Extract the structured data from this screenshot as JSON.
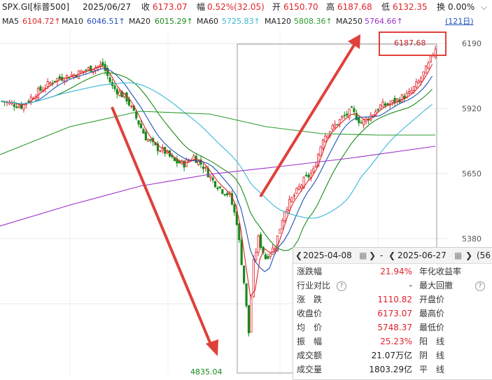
{
  "header": {
    "code": "SPX.GI[标普500]",
    "date": "2025/06/27",
    "close_label": "收",
    "close": "6173.07",
    "chg_label": "幅",
    "chg": "0.52%(32.05)",
    "open_label": "开",
    "open": "6150.70",
    "high_label": "高",
    "high": "6187.68",
    "low_label": "低",
    "low": "6132.35",
    "turnover_label": "换",
    "turnover": "0.00%"
  },
  "ma_bar": {
    "ma5_label": "MA5",
    "ma5": "6104.72↑",
    "ma10_label": "MA10",
    "ma10": "6046.51↑",
    "ma20_label": "MA20",
    "ma20": "6015.29↑",
    "ma60_label": "MA60",
    "ma60": "5725.83↑",
    "ma120_label": "MA120",
    "ma120": "5808.36↑",
    "ma250_label": "MA250",
    "ma250": "5764.66↑",
    "period": "(121日)",
    "colors": {
      "ma5": "#e0232b",
      "ma10": "#1f4fb5",
      "ma20": "#1a8a1a",
      "ma60": "#39b7d8",
      "ma120": "#2d9a2d",
      "ma250": "#9b2fc8"
    }
  },
  "y_axis": [
    "6190",
    "5920",
    "5650",
    "5380"
  ],
  "annotations": {
    "period_high": "6187.68",
    "period_low": "4835.04"
  },
  "stats_popup": {
    "start_date": "2025-04-08",
    "end_date": "2025-06-27",
    "sep": "-",
    "extra": "(56",
    "rows": [
      {
        "k1": "涨跌幅",
        "v1": "21.94%",
        "c1": "red",
        "k2": "年化收益率"
      },
      {
        "k1": "行业对比",
        "v1": "-",
        "c1": "dark",
        "k2": "最大回撤"
      },
      {
        "k1": "涨　跌",
        "v1": "1110.82",
        "c1": "red",
        "k2": "开盘价"
      },
      {
        "k1": "收盘价",
        "v1": "6173.07",
        "c1": "red",
        "k2": "最高价"
      },
      {
        "k1": "均　价",
        "v1": "5748.37",
        "c1": "red",
        "k2": "最低价"
      },
      {
        "k1": "振　幅",
        "v1": "25.23%",
        "c1": "red",
        "k2": "阳　线"
      },
      {
        "k1": "成交额",
        "v1": "21.07万亿",
        "c1": "dark",
        "k2": "阴　线"
      },
      {
        "k1": "成交量",
        "v1": "1803.29亿",
        "c1": "dark",
        "k2": "平　线"
      }
    ]
  },
  "chart_data": {
    "type": "candlestick",
    "y_axis_ticks": [
      6190,
      5920,
      5650,
      5380
    ],
    "period_high": 6187.68,
    "period_low": 4835.04,
    "series": [
      {
        "name": "MA5",
        "color": "#e0232b"
      },
      {
        "name": "MA10",
        "color": "#1f4fb5"
      },
      {
        "name": "MA20",
        "color": "#1a8a1a"
      },
      {
        "name": "MA60",
        "color": "#39b7d8"
      },
      {
        "name": "MA120",
        "color": "#2d9a2d"
      },
      {
        "name": "MA250",
        "color": "#9b2fc8"
      }
    ]
  }
}
